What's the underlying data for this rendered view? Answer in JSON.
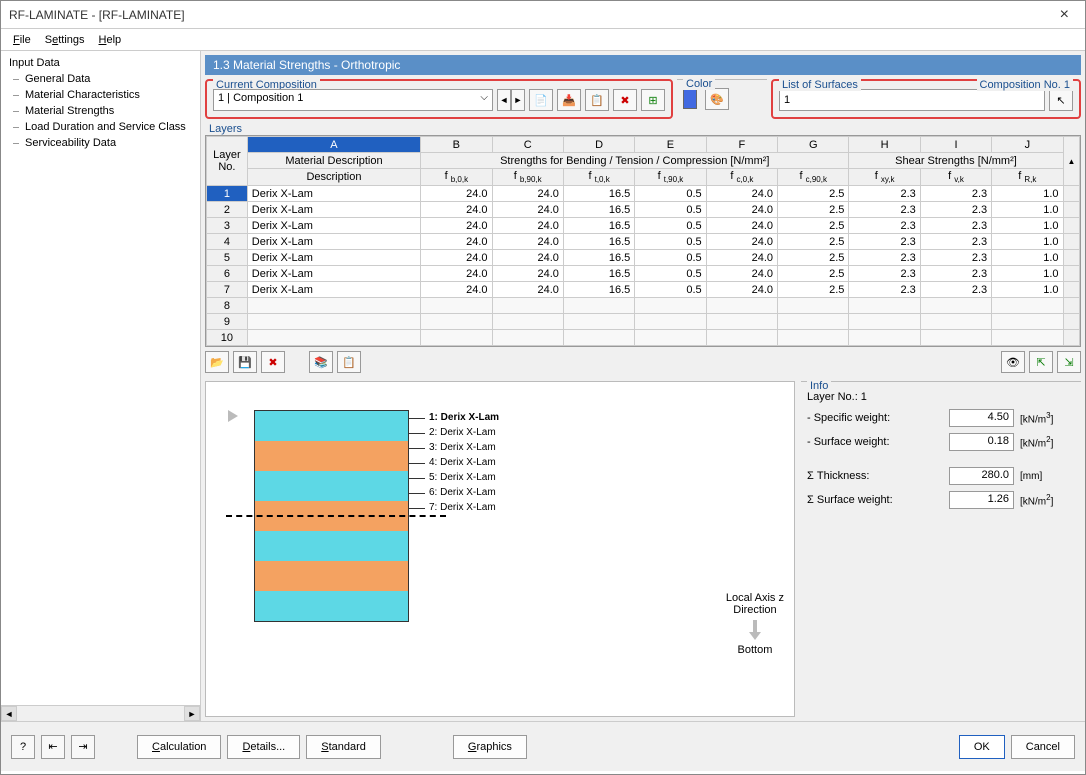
{
  "window": {
    "title": "RF-LAMINATE - [RF-LAMINATE]",
    "close": "×"
  },
  "menubar": {
    "file": "File",
    "settings": "Settings",
    "help": "Help"
  },
  "sidebar": {
    "root": "Input Data",
    "items": [
      "General Data",
      "Material Characteristics",
      "Material Strengths",
      "Load Duration and Service Class",
      "Serviceability Data"
    ]
  },
  "section_title": "1.3 Material Strengths - Orthotropic",
  "current_composition": {
    "legend": "Current Composition",
    "value": "1 | Composition 1"
  },
  "color": {
    "legend": "Color",
    "swatch": "#4169e1"
  },
  "surfaces": {
    "legend": "List of Surfaces",
    "right_legend": "Composition No. 1",
    "value": "1"
  },
  "layers": {
    "legend": "Layers",
    "col_letters": [
      "A",
      "B",
      "C",
      "D",
      "E",
      "F",
      "G",
      "H",
      "I",
      "J"
    ],
    "head_rownum": "Layer No.",
    "head_material": "Material Description",
    "group_bending": "Strengths for Bending / Tension / Compression [N/mm²]",
    "group_shear": "Shear Strengths [N/mm²]",
    "sub_headers": [
      "f b,0,k",
      "f b,90,k",
      "f t,0,k",
      "f t,90,k",
      "f c,0,k",
      "f c,90,k",
      "f xy,k",
      "f v,k",
      "f R,k"
    ],
    "rows": [
      {
        "n": "1",
        "mat": "Derix X-Lam",
        "v": [
          "24.0",
          "24.0",
          "16.5",
          "0.5",
          "24.0",
          "2.5",
          "2.3",
          "2.3",
          "1.0"
        ]
      },
      {
        "n": "2",
        "mat": "Derix X-Lam",
        "v": [
          "24.0",
          "24.0",
          "16.5",
          "0.5",
          "24.0",
          "2.5",
          "2.3",
          "2.3",
          "1.0"
        ]
      },
      {
        "n": "3",
        "mat": "Derix X-Lam",
        "v": [
          "24.0",
          "24.0",
          "16.5",
          "0.5",
          "24.0",
          "2.5",
          "2.3",
          "2.3",
          "1.0"
        ]
      },
      {
        "n": "4",
        "mat": "Derix X-Lam",
        "v": [
          "24.0",
          "24.0",
          "16.5",
          "0.5",
          "24.0",
          "2.5",
          "2.3",
          "2.3",
          "1.0"
        ]
      },
      {
        "n": "5",
        "mat": "Derix X-Lam",
        "v": [
          "24.0",
          "24.0",
          "16.5",
          "0.5",
          "24.0",
          "2.5",
          "2.3",
          "2.3",
          "1.0"
        ]
      },
      {
        "n": "6",
        "mat": "Derix X-Lam",
        "v": [
          "24.0",
          "24.0",
          "16.5",
          "0.5",
          "24.0",
          "2.5",
          "2.3",
          "2.3",
          "1.0"
        ]
      },
      {
        "n": "7",
        "mat": "Derix X-Lam",
        "v": [
          "24.0",
          "24.0",
          "16.5",
          "0.5",
          "24.0",
          "2.5",
          "2.3",
          "2.3",
          "1.0"
        ]
      }
    ],
    "empty_rows": [
      "8",
      "9",
      "10"
    ]
  },
  "preview": {
    "ply_labels": [
      "1: Derix X-Lam",
      "2: Derix X-Lam",
      "3: Derix X-Lam",
      "4: Derix X-Lam",
      "5: Derix X-Lam",
      "6: Derix X-Lam",
      "7: Derix X-Lam"
    ],
    "ply_colors": [
      "cyan",
      "orange",
      "cyan",
      "orange",
      "cyan",
      "orange",
      "cyan"
    ],
    "axis_label_1": "Local Axis z",
    "axis_label_2": "Direction",
    "bottom_label": "Bottom"
  },
  "info": {
    "legend": "Info",
    "layer_no": "Layer No.: 1",
    "specific_weight_lbl": "- Specific weight:",
    "specific_weight_val": "4.50",
    "specific_weight_unit": "[kN/m³]",
    "surface_weight_lbl": "- Surface weight:",
    "surface_weight_val": "0.18",
    "surface_weight_unit": "[kN/m²]",
    "thickness_lbl": "Σ Thickness:",
    "thickness_val": "280.0",
    "thickness_unit": "[mm]",
    "sum_surface_lbl": "Σ Surface weight:",
    "sum_surface_val": "1.26",
    "sum_surface_unit": "[kN/m²]"
  },
  "footer": {
    "calculation": "Calculation",
    "details": "Details...",
    "standard": "Standard",
    "graphics": "Graphics",
    "ok": "OK",
    "cancel": "Cancel"
  }
}
